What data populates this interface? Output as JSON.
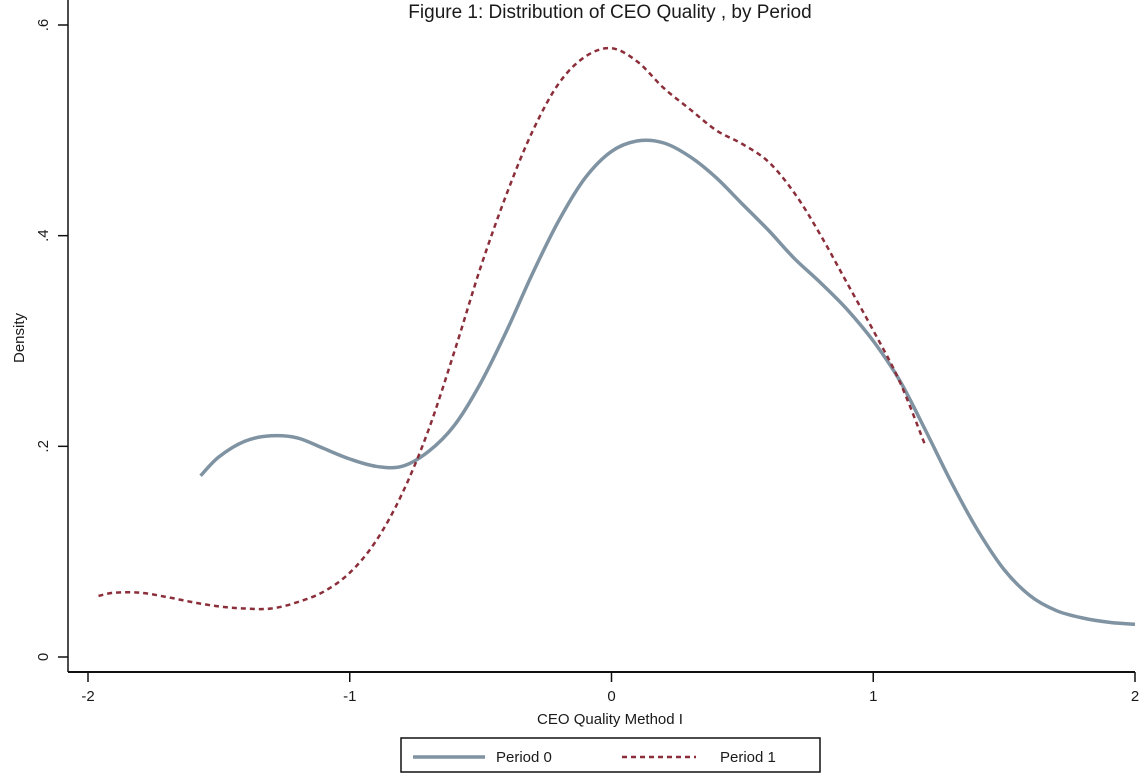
{
  "chart_data": {
    "type": "line",
    "title": "Figure 1: Distribution of CEO Quality , by Period",
    "xlabel": "CEO Quality Method I",
    "ylabel": "Density",
    "xlim": [
      -2,
      2
    ],
    "ylim": [
      0,
      0.6
    ],
    "x_ticks": [
      -2,
      -1,
      0,
      1,
      2
    ],
    "x_tick_labels": [
      "-2",
      "-1",
      "0",
      "1",
      "2"
    ],
    "y_ticks": [
      0,
      0.2,
      0.4,
      0.6
    ],
    "y_tick_labels": [
      "0",
      ".2",
      ".4",
      ".6"
    ],
    "grid": false,
    "legend_position": "bottom",
    "series": [
      {
        "name": "Period 0",
        "style": "solid",
        "color": "#7f93a2",
        "points": [
          [
            -1.57,
            0.172
          ],
          [
            -1.5,
            0.19
          ],
          [
            -1.4,
            0.205
          ],
          [
            -1.3,
            0.21
          ],
          [
            -1.2,
            0.208
          ],
          [
            -1.1,
            0.198
          ],
          [
            -1.0,
            0.188
          ],
          [
            -0.9,
            0.181
          ],
          [
            -0.8,
            0.181
          ],
          [
            -0.7,
            0.195
          ],
          [
            -0.6,
            0.22
          ],
          [
            -0.5,
            0.26
          ],
          [
            -0.4,
            0.31
          ],
          [
            -0.3,
            0.365
          ],
          [
            -0.2,
            0.415
          ],
          [
            -0.1,
            0.455
          ],
          [
            0.0,
            0.48
          ],
          [
            0.1,
            0.49
          ],
          [
            0.2,
            0.488
          ],
          [
            0.3,
            0.475
          ],
          [
            0.4,
            0.455
          ],
          [
            0.5,
            0.43
          ],
          [
            0.6,
            0.405
          ],
          [
            0.7,
            0.378
          ],
          [
            0.8,
            0.355
          ],
          [
            0.9,
            0.33
          ],
          [
            1.0,
            0.3
          ],
          [
            1.1,
            0.263
          ],
          [
            1.2,
            0.215
          ],
          [
            1.3,
            0.165
          ],
          [
            1.4,
            0.12
          ],
          [
            1.5,
            0.083
          ],
          [
            1.6,
            0.058
          ],
          [
            1.7,
            0.044
          ],
          [
            1.8,
            0.037
          ],
          [
            1.9,
            0.033
          ],
          [
            2.0,
            0.031
          ]
        ]
      },
      {
        "name": "Period 1",
        "style": "dashed",
        "color": "#8b2e3a",
        "points": [
          [
            -1.96,
            0.058
          ],
          [
            -1.9,
            0.061
          ],
          [
            -1.8,
            0.061
          ],
          [
            -1.7,
            0.057
          ],
          [
            -1.6,
            0.052
          ],
          [
            -1.5,
            0.048
          ],
          [
            -1.4,
            0.046
          ],
          [
            -1.3,
            0.046
          ],
          [
            -1.2,
            0.052
          ],
          [
            -1.1,
            0.062
          ],
          [
            -1.0,
            0.08
          ],
          [
            -0.9,
            0.11
          ],
          [
            -0.8,
            0.155
          ],
          [
            -0.7,
            0.215
          ],
          [
            -0.6,
            0.29
          ],
          [
            -0.5,
            0.37
          ],
          [
            -0.4,
            0.44
          ],
          [
            -0.3,
            0.5
          ],
          [
            -0.2,
            0.545
          ],
          [
            -0.1,
            0.57
          ],
          [
            0.0,
            0.578
          ],
          [
            0.1,
            0.565
          ],
          [
            0.2,
            0.54
          ],
          [
            0.3,
            0.52
          ],
          [
            0.4,
            0.5
          ],
          [
            0.5,
            0.487
          ],
          [
            0.6,
            0.47
          ],
          [
            0.7,
            0.44
          ],
          [
            0.8,
            0.4
          ],
          [
            0.9,
            0.355
          ],
          [
            1.0,
            0.31
          ],
          [
            1.1,
            0.262
          ],
          [
            1.2,
            0.2
          ]
        ]
      }
    ]
  }
}
